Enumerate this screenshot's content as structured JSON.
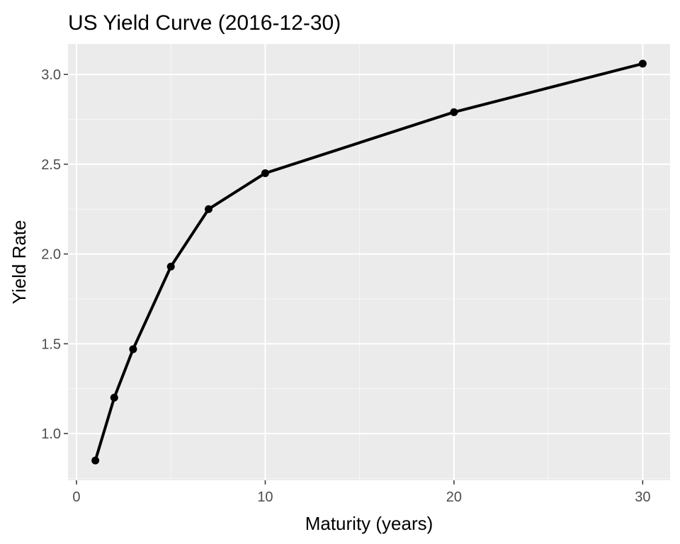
{
  "chart_data": {
    "type": "line",
    "title": "US Yield Curve (2016-12-30)",
    "xlabel": "Maturity (years)",
    "ylabel": "Yield Rate",
    "x": [
      1,
      2,
      3,
      5,
      7,
      10,
      20,
      30
    ],
    "series": [
      {
        "values": [
          0.85,
          1.2,
          1.47,
          1.93,
          2.25,
          2.45,
          2.79,
          3.06
        ]
      }
    ],
    "xlim": [
      -0.45,
      31.45
    ],
    "ylim": [
      0.74,
      3.17
    ],
    "x_ticks": [
      0,
      10,
      20,
      30
    ],
    "x_tick_labels": [
      "0",
      "10",
      "20",
      "30"
    ],
    "x_minor_ticks": [
      5,
      15,
      25
    ],
    "y_ticks": [
      1.0,
      1.5,
      2.0,
      2.5,
      3.0
    ],
    "y_tick_labels": [
      "1.0",
      "1.5",
      "2.0",
      "2.5",
      "3.0"
    ],
    "y_minor_ticks": [
      0.75,
      1.25,
      1.75,
      2.25,
      2.75
    ],
    "grid": true,
    "legend": "none",
    "colors": {
      "panel_background": "#ebebeb",
      "grid_major": "#ffffff",
      "grid_minor": "#f7f7f7",
      "line": "#000000",
      "points": "#000000",
      "tick_marks": "#333333"
    }
  }
}
